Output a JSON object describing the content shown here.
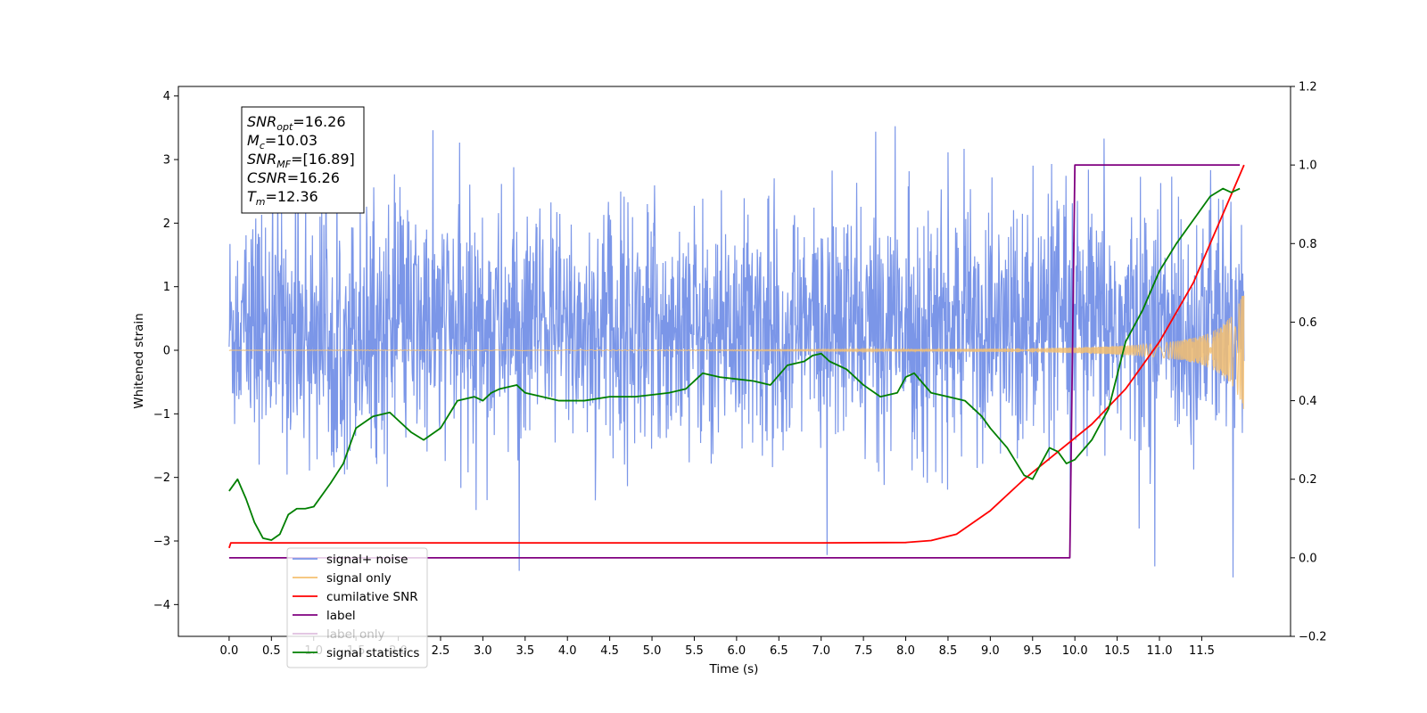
{
  "chart_data": {
    "type": "line",
    "xlabel": "Time (s)",
    "ylabel": "Whitened strain",
    "xlim": [
      -0.6,
      12.55
    ],
    "ylim": [
      -4.5,
      4.15
    ],
    "y2lim": [
      -0.2,
      1.2
    ],
    "x_ticks": [
      "0.0",
      "0.5",
      "1.0",
      "1.5",
      "2.0",
      "2.5",
      "3.0",
      "3.5",
      "4.0",
      "4.5",
      "5.0",
      "5.5",
      "6.0",
      "6.5",
      "7.0",
      "7.5",
      "8.0",
      "8.5",
      "9.0",
      "9.5",
      "10.0",
      "10.5",
      "11.0",
      "11.5"
    ],
    "y_ticks": [
      "−4",
      "−3",
      "−2",
      "−1",
      "0",
      "1",
      "2",
      "3",
      "4"
    ],
    "y2_ticks": [
      "−0.2",
      "0.0",
      "0.2",
      "0.4",
      "0.6",
      "0.8",
      "1.0",
      "1.2"
    ],
    "annotation": [
      {
        "sym": "SNR",
        "sub": "opt",
        "value": "=16.26"
      },
      {
        "sym": "M",
        "sub": "c",
        "value": "=10.03"
      },
      {
        "sym": "SNR",
        "sub": "MF",
        "value": "=[16.89]"
      },
      {
        "sym": "CSNR",
        "sub": "",
        "value": "=16.26"
      },
      {
        "sym": "T",
        "sub": "m",
        "value": "=12.36"
      }
    ],
    "legend_position": "lower-left",
    "series": [
      {
        "name": "signal+ noise",
        "color": "#7b96e8",
        "axis": "left",
        "kind": "noise",
        "x_range": [
          0,
          12.0
        ],
        "amplitude_sd": 1.0
      },
      {
        "name": "signal only",
        "color": "#f5c070",
        "axis": "left",
        "kind": "chirp",
        "x_range": [
          0,
          12.0
        ],
        "amplitude_end": 0.95
      },
      {
        "name": "cumilative SNR",
        "color": "#ff0000",
        "axis": "right",
        "x": [
          0,
          0.02,
          1,
          3,
          5,
          7,
          8,
          8.3,
          8.6,
          9,
          9.4,
          9.8,
          10.2,
          10.6,
          11,
          11.4,
          11.8,
          12.0
        ],
        "y": [
          0.025,
          0.038,
          0.038,
          0.038,
          0.038,
          0.038,
          0.039,
          0.044,
          0.06,
          0.12,
          0.2,
          0.27,
          0.34,
          0.43,
          0.55,
          0.7,
          0.9,
          1.0
        ]
      },
      {
        "name": "label",
        "color": "#800080",
        "axis": "right",
        "x": [
          0,
          9.94,
          10.0,
          11.95
        ],
        "y": [
          0.0,
          0.0,
          1.0,
          1.0
        ]
      },
      {
        "name": "label only",
        "color": "#800080",
        "axis": "right",
        "hidden": true,
        "x": [],
        "y": []
      },
      {
        "name": "signal statistics",
        "color": "#007f00",
        "axis": "right",
        "x": [
          0,
          0.1,
          0.2,
          0.3,
          0.4,
          0.5,
          0.6,
          0.7,
          0.8,
          0.9,
          1.0,
          1.2,
          1.35,
          1.5,
          1.7,
          1.9,
          2.0,
          2.15,
          2.3,
          2.5,
          2.7,
          2.9,
          3.0,
          3.1,
          3.2,
          3.4,
          3.5,
          3.7,
          3.9,
          4.2,
          4.5,
          4.8,
          5.0,
          5.2,
          5.4,
          5.6,
          5.8,
          6.0,
          6.2,
          6.4,
          6.6,
          6.8,
          6.9,
          7.0,
          7.1,
          7.3,
          7.5,
          7.7,
          7.9,
          8.0,
          8.1,
          8.3,
          8.5,
          8.7,
          8.9,
          9.0,
          9.2,
          9.4,
          9.5,
          9.6,
          9.7,
          9.8,
          9.9,
          10.0,
          10.2,
          10.4,
          10.6,
          10.8,
          11.0,
          11.2,
          11.4,
          11.6,
          11.75,
          11.85,
          11.95
        ],
        "y": [
          0.17,
          0.2,
          0.15,
          0.09,
          0.05,
          0.045,
          0.06,
          0.11,
          0.125,
          0.125,
          0.13,
          0.19,
          0.24,
          0.33,
          0.36,
          0.37,
          0.35,
          0.32,
          0.3,
          0.33,
          0.4,
          0.41,
          0.4,
          0.42,
          0.43,
          0.44,
          0.42,
          0.41,
          0.4,
          0.4,
          0.41,
          0.41,
          0.415,
          0.42,
          0.43,
          0.47,
          0.46,
          0.455,
          0.45,
          0.44,
          0.49,
          0.5,
          0.515,
          0.52,
          0.5,
          0.48,
          0.44,
          0.41,
          0.42,
          0.46,
          0.47,
          0.42,
          0.41,
          0.4,
          0.36,
          0.33,
          0.28,
          0.21,
          0.2,
          0.24,
          0.28,
          0.27,
          0.24,
          0.25,
          0.3,
          0.38,
          0.55,
          0.63,
          0.73,
          0.8,
          0.86,
          0.92,
          0.94,
          0.93,
          0.94
        ]
      }
    ]
  }
}
